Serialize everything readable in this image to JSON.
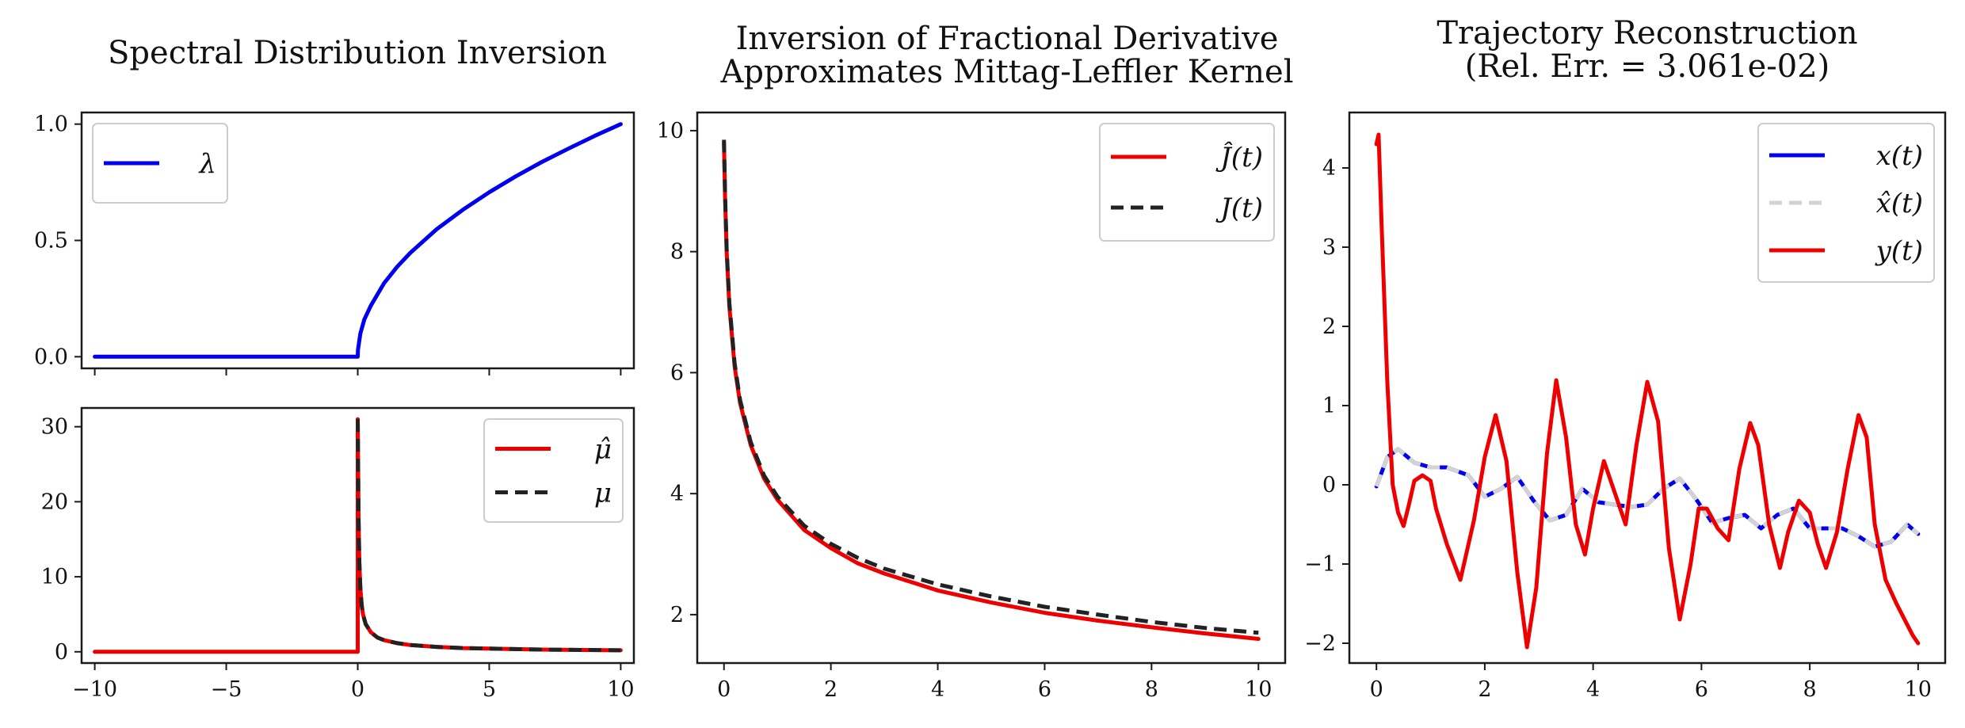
{
  "chart_data": [
    {
      "id": "lambda",
      "type": "line",
      "title": "Spectral Distribution Inversion",
      "xlim": [
        -10.5,
        10.5
      ],
      "ylim": [
        -0.05,
        1.05
      ],
      "xticks": [
        -10,
        -5,
        0,
        5,
        10
      ],
      "yticks": [
        0.0,
        0.5,
        1.0
      ],
      "ytick_labels": [
        "0.0",
        "0.5",
        "1.0"
      ],
      "show_xtick_labels": false,
      "legend": "top-left",
      "series": [
        {
          "name": "λ",
          "color": "#0000ee",
          "style": "solid",
          "x": [
            -10,
            0,
            0.01,
            0.1,
            0.25,
            0.5,
            1,
            1.5,
            2,
            3,
            4,
            5,
            6,
            7,
            8,
            9,
            10
          ],
          "y": [
            0,
            0,
            0.03,
            0.1,
            0.16,
            0.22,
            0.316,
            0.387,
            0.447,
            0.548,
            0.632,
            0.707,
            0.775,
            0.837,
            0.894,
            0.949,
            1.0
          ]
        }
      ]
    },
    {
      "id": "mu",
      "type": "line",
      "title": "",
      "xlim": [
        -10.5,
        10.5
      ],
      "ylim": [
        -1.5,
        32.5
      ],
      "xticks": [
        -10,
        -5,
        0,
        5,
        10
      ],
      "xtick_labels": [
        "−10",
        "−5",
        "0",
        "5",
        "10"
      ],
      "yticks": [
        0,
        10,
        20,
        30
      ],
      "ytick_labels": [
        "0",
        "10",
        "20",
        "30"
      ],
      "legend": "top-right",
      "series": [
        {
          "name": "μ̂",
          "color": "#ee0000",
          "style": "solid",
          "x": [
            -10,
            0,
            0,
            0.03,
            0.06,
            0.1,
            0.15,
            0.2,
            0.3,
            0.5,
            0.75,
            1,
            1.5,
            2,
            3,
            4,
            5,
            7,
            10
          ],
          "y": [
            0,
            0,
            31,
            18,
            12,
            8.5,
            6.2,
            5.0,
            3.7,
            2.6,
            1.9,
            1.55,
            1.15,
            0.9,
            0.65,
            0.5,
            0.42,
            0.3,
            0.2
          ]
        },
        {
          "name": "μ",
          "color": "#222222",
          "style": "dashed",
          "x": [
            0,
            0.03,
            0.06,
            0.1,
            0.15,
            0.2,
            0.3,
            0.5,
            0.75,
            1,
            1.5,
            2,
            3,
            4,
            5,
            7,
            10
          ],
          "y": [
            31,
            18,
            12,
            8.5,
            6.2,
            5.0,
            3.7,
            2.6,
            1.9,
            1.55,
            1.15,
            0.9,
            0.65,
            0.5,
            0.42,
            0.3,
            0.2
          ]
        }
      ]
    },
    {
      "id": "kernel",
      "type": "line",
      "title": "Inversion of Fractional Derivative\nApproximates Mittag-Leffler Kernel",
      "xlim": [
        -0.5,
        10.5
      ],
      "ylim": [
        1.2,
        10.3
      ],
      "xticks": [
        0,
        2,
        4,
        6,
        8,
        10
      ],
      "xtick_labels": [
        "0",
        "2",
        "4",
        "6",
        "8",
        "10"
      ],
      "yticks": [
        2,
        4,
        6,
        8,
        10
      ],
      "ytick_labels": [
        "2",
        "4",
        "6",
        "8",
        "10"
      ],
      "legend": "top-right",
      "series": [
        {
          "name": "Ĵ(t)",
          "color": "#ee0000",
          "style": "solid",
          "x": [
            0,
            0.02,
            0.05,
            0.1,
            0.2,
            0.3,
            0.5,
            0.75,
            1,
            1.5,
            2,
            2.5,
            3,
            4,
            5,
            6,
            7,
            8,
            9,
            10
          ],
          "y": [
            9.8,
            8.9,
            8.0,
            7.1,
            6.1,
            5.5,
            4.8,
            4.25,
            3.9,
            3.4,
            3.1,
            2.85,
            2.68,
            2.4,
            2.2,
            2.03,
            1.9,
            1.79,
            1.69,
            1.6
          ]
        },
        {
          "name": "J(t)",
          "color": "#222222",
          "style": "dashed",
          "x": [
            0,
            0.02,
            0.05,
            0.1,
            0.2,
            0.3,
            0.5,
            0.75,
            1,
            1.5,
            2,
            2.5,
            3,
            4,
            5,
            6,
            7,
            8,
            9,
            10
          ],
          "y": [
            9.85,
            8.95,
            8.05,
            7.15,
            6.15,
            5.55,
            4.85,
            4.3,
            3.95,
            3.47,
            3.17,
            2.94,
            2.76,
            2.5,
            2.3,
            2.13,
            2.0,
            1.88,
            1.78,
            1.7
          ]
        }
      ]
    },
    {
      "id": "trajectory",
      "type": "line",
      "title": "Trajectory Reconstruction\n(Rel. Err. = 3.061e-02)",
      "xlim": [
        -0.5,
        10.5
      ],
      "ylim": [
        -2.25,
        4.7
      ],
      "xticks": [
        0,
        2,
        4,
        6,
        8,
        10
      ],
      "xtick_labels": [
        "0",
        "2",
        "4",
        "6",
        "8",
        "10"
      ],
      "yticks": [
        -2,
        -1,
        0,
        1,
        2,
        3,
        4
      ],
      "ytick_labels": [
        "−2",
        "−1",
        "0",
        "1",
        "2",
        "3",
        "4"
      ],
      "legend": "top-right",
      "series": [
        {
          "name": "x(t)",
          "color": "#0000ee",
          "style": "solid",
          "x": [
            0,
            0.2,
            0.4,
            0.7,
            1.0,
            1.3,
            1.7,
            2.0,
            2.3,
            2.6,
            2.9,
            3.2,
            3.5,
            3.8,
            4.1,
            4.4,
            4.7,
            5.0,
            5.3,
            5.6,
            5.9,
            6.2,
            6.5,
            6.8,
            7.1,
            7.4,
            7.7,
            8.0,
            8.3,
            8.6,
            8.9,
            9.2,
            9.5,
            9.8,
            10.0
          ],
          "y": [
            -0.02,
            0.35,
            0.45,
            0.28,
            0.22,
            0.22,
            0.12,
            -0.15,
            -0.05,
            0.1,
            -0.2,
            -0.45,
            -0.38,
            -0.05,
            -0.22,
            -0.25,
            -0.28,
            -0.25,
            -0.05,
            0.08,
            -0.18,
            -0.48,
            -0.42,
            -0.38,
            -0.55,
            -0.38,
            -0.3,
            -0.55,
            -0.55,
            -0.55,
            -0.65,
            -0.78,
            -0.72,
            -0.5,
            -0.62
          ]
        },
        {
          "name": "x̂(t)",
          "color": "#d3d3d3",
          "style": "dashed",
          "x": [
            0,
            0.2,
            0.4,
            0.7,
            1.0,
            1.3,
            1.7,
            2.0,
            2.3,
            2.6,
            2.9,
            3.2,
            3.5,
            3.8,
            4.1,
            4.4,
            4.7,
            5.0,
            5.3,
            5.6,
            5.9,
            6.2,
            6.5,
            6.8,
            7.1,
            7.4,
            7.7,
            8.0,
            8.3,
            8.6,
            8.9,
            9.2,
            9.5,
            9.8,
            10.0
          ],
          "y": [
            -0.02,
            0.35,
            0.45,
            0.28,
            0.22,
            0.22,
            0.12,
            -0.15,
            -0.05,
            0.1,
            -0.2,
            -0.45,
            -0.38,
            -0.05,
            -0.22,
            -0.25,
            -0.28,
            -0.25,
            -0.05,
            0.08,
            -0.18,
            -0.48,
            -0.42,
            -0.38,
            -0.55,
            -0.38,
            -0.3,
            -0.55,
            -0.55,
            -0.55,
            -0.65,
            -0.78,
            -0.72,
            -0.5,
            -0.62
          ]
        },
        {
          "name": "y(t)",
          "color": "#ee0000",
          "style": "solid",
          "x": [
            0,
            0.04,
            0.1,
            0.2,
            0.3,
            0.4,
            0.5,
            0.6,
            0.7,
            0.85,
            1.0,
            1.1,
            1.3,
            1.55,
            1.8,
            2.0,
            2.2,
            2.4,
            2.6,
            2.78,
            2.95,
            3.15,
            3.32,
            3.5,
            3.68,
            3.85,
            4.0,
            4.2,
            4.4,
            4.6,
            4.8,
            5.0,
            5.2,
            5.4,
            5.6,
            5.8,
            5.95,
            6.1,
            6.3,
            6.5,
            6.7,
            6.9,
            7.05,
            7.25,
            7.45,
            7.6,
            7.8,
            8.0,
            8.15,
            8.3,
            8.5,
            8.7,
            8.9,
            9.05,
            9.2,
            9.4,
            9.6,
            9.75,
            9.9,
            10.0
          ],
          "y": [
            4.3,
            4.42,
            3.2,
            1.3,
            0.0,
            -0.35,
            -0.52,
            -0.25,
            0.05,
            0.12,
            0.05,
            -0.3,
            -0.75,
            -1.2,
            -0.45,
            0.35,
            0.88,
            0.3,
            -1.1,
            -2.05,
            -1.3,
            0.4,
            1.32,
            0.6,
            -0.5,
            -0.88,
            -0.3,
            0.3,
            -0.1,
            -0.5,
            0.5,
            1.3,
            0.8,
            -0.8,
            -1.7,
            -1.0,
            -0.3,
            -0.3,
            -0.55,
            -0.7,
            0.2,
            0.78,
            0.5,
            -0.5,
            -1.05,
            -0.6,
            -0.2,
            -0.35,
            -0.75,
            -1.05,
            -0.6,
            0.2,
            0.88,
            0.6,
            -0.5,
            -1.2,
            -1.5,
            -1.7,
            -1.9,
            -2.0
          ]
        }
      ]
    }
  ]
}
